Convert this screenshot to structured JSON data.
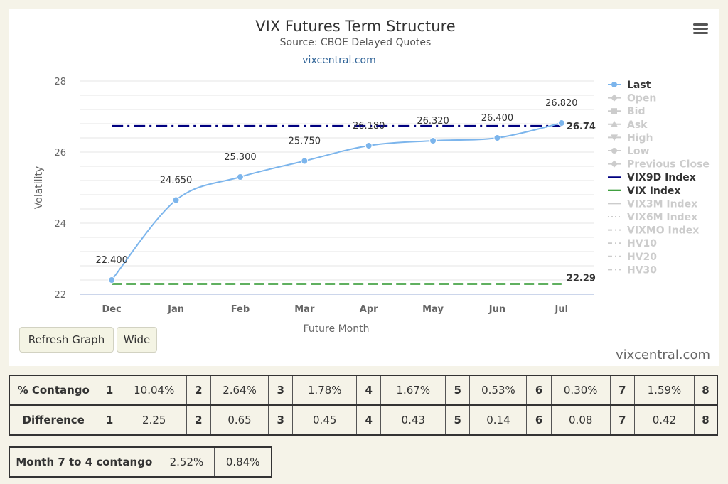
{
  "chart_data": {
    "type": "line",
    "title": "VIX Futures Term Structure",
    "subtitle": "Source: CBOE Delayed Quotes",
    "link_text": "vixcentral.com",
    "xlabel": "Future Month",
    "ylabel": "Volatility",
    "categories": [
      "Dec",
      "Jan",
      "Feb",
      "Mar",
      "Apr",
      "May",
      "Jun",
      "Jul"
    ],
    "y_ticks": [
      "22",
      "24",
      "26",
      "28"
    ],
    "ylim": [
      22,
      28
    ],
    "grid": true,
    "legend_position": "right",
    "series": [
      {
        "name": "Last",
        "color": "#7cb5ec",
        "values": [
          22.4,
          24.65,
          25.3,
          25.75,
          26.18,
          26.32,
          26.4,
          26.82
        ],
        "data_labels": [
          "22.400",
          "24.650",
          "25.300",
          "25.750",
          "26.180",
          "26.320",
          "26.400",
          "26.820"
        ]
      },
      {
        "name": "VIX9D Index",
        "color": "#000080",
        "style": "dash-dot",
        "value": 26.74,
        "end_label": "26.74"
      },
      {
        "name": "VIX Index",
        "color": "#008000",
        "style": "dashed",
        "value": 22.29,
        "end_label": "22.29"
      }
    ],
    "legend": [
      {
        "name": "Last",
        "active": true,
        "marker": "circle",
        "line": "solid",
        "color": "#7cb5ec"
      },
      {
        "name": "Open",
        "active": false,
        "marker": "diamond",
        "line": "solid"
      },
      {
        "name": "Bid",
        "active": false,
        "marker": "square",
        "line": "solid"
      },
      {
        "name": "Ask",
        "active": false,
        "marker": "triangle-up",
        "line": "solid"
      },
      {
        "name": "High",
        "active": false,
        "marker": "triangle-down",
        "line": "solid"
      },
      {
        "name": "Low",
        "active": false,
        "marker": "circle",
        "line": "solid"
      },
      {
        "name": "Previous Close",
        "active": false,
        "marker": "diamond",
        "line": "solid"
      },
      {
        "name": "VIX9D Index",
        "active": true,
        "marker": "none",
        "line": "solid",
        "color": "#000080"
      },
      {
        "name": "VIX Index",
        "active": true,
        "marker": "none",
        "line": "solid",
        "color": "#008000"
      },
      {
        "name": "VIX3M Index",
        "active": false,
        "marker": "none",
        "line": "solid"
      },
      {
        "name": "VIX6M Index",
        "active": false,
        "marker": "none",
        "line": "dotted"
      },
      {
        "name": "VIXMO Index",
        "active": false,
        "marker": "none",
        "line": "dash-dot"
      },
      {
        "name": "HV10",
        "active": false,
        "marker": "none",
        "line": "dash-dot"
      },
      {
        "name": "HV20",
        "active": false,
        "marker": "none",
        "line": "dash-dot"
      },
      {
        "name": "HV30",
        "active": false,
        "marker": "none",
        "line": "dash-dot"
      }
    ]
  },
  "colors": {
    "active_text": "#333333",
    "inactive": "#cccccc",
    "grid": "#e6e6e6",
    "axis_label": "#666666"
  },
  "icons": {
    "menu": "hamburger-menu-icon"
  },
  "controls": {
    "refresh_label": "Refresh Graph",
    "wide_label": "Wide"
  },
  "watermark": "vixcentral.com",
  "contango_table": {
    "rows": [
      {
        "label": "% Contango",
        "cells": [
          {
            "idx": "1",
            "value": "10.04%"
          },
          {
            "idx": "2",
            "value": "2.64%"
          },
          {
            "idx": "3",
            "value": "1.78%"
          },
          {
            "idx": "4",
            "value": "1.67%"
          },
          {
            "idx": "5",
            "value": "0.53%"
          },
          {
            "idx": "6",
            "value": "0.30%"
          },
          {
            "idx": "7",
            "value": "1.59%"
          }
        ],
        "last_idx": "8"
      },
      {
        "label": "Difference",
        "cells": [
          {
            "idx": "1",
            "value": "2.25"
          },
          {
            "idx": "2",
            "value": "0.65"
          },
          {
            "idx": "3",
            "value": "0.45"
          },
          {
            "idx": "4",
            "value": "0.43"
          },
          {
            "idx": "5",
            "value": "0.14"
          },
          {
            "idx": "6",
            "value": "0.08"
          },
          {
            "idx": "7",
            "value": "0.42"
          }
        ],
        "last_idx": "8"
      }
    ]
  },
  "month_table": {
    "label": "Month 7 to 4 contango",
    "values": [
      "2.52%",
      "0.84%"
    ]
  }
}
